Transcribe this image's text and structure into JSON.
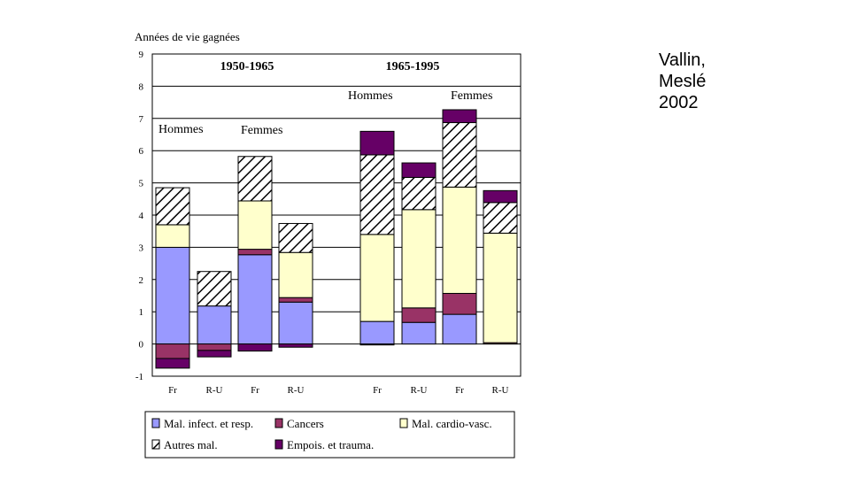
{
  "attribution": [
    "Vallin,",
    "Meslé",
    "2002"
  ],
  "chart_data": {
    "type": "bar",
    "stacked": true,
    "title": "",
    "xlabel": "",
    "ylabel": "Années de vie gagnées",
    "ylim": [
      -1,
      9
    ],
    "yticks": [
      -1,
      0,
      1,
      2,
      3,
      4,
      5,
      6,
      7,
      8,
      9
    ],
    "grid": true,
    "legend_position": "bottom",
    "categories": [
      "Fr",
      "R-U",
      "Fr",
      "R-U",
      "Fr",
      "R-U",
      "Fr",
      "R-U"
    ],
    "period_labels": [
      "1950-1965",
      "1965-1995"
    ],
    "group_labels": [
      "Hommes",
      "Femmes",
      "Hommes",
      "Femmes"
    ],
    "colors": {
      "infect": "#9999ff",
      "cancers": "#993366",
      "cardio": "#ffffcc",
      "autres": "#ffffff",
      "empois": "#660066"
    },
    "series": [
      {
        "name": "Mal. infect. et resp.",
        "key": "infect",
        "values": [
          3.0,
          1.18,
          2.77,
          1.3,
          0.7,
          0.67,
          0.92,
          0.0
        ]
      },
      {
        "name": "Cancers",
        "key": "cancers",
        "values": [
          -0.45,
          -0.2,
          0.17,
          0.14,
          -0.03,
          0.45,
          0.65,
          0.04
        ]
      },
      {
        "name": "Mal. cardio-vasc.",
        "key": "cardio",
        "values": [
          0.7,
          0.0,
          1.5,
          1.4,
          2.7,
          3.05,
          3.3,
          3.4
        ]
      },
      {
        "name": "Autres mal.",
        "key": "autres",
        "values": [
          1.15,
          1.07,
          1.38,
          0.9,
          2.47,
          1.0,
          2.0,
          0.95
        ]
      },
      {
        "name": "Empois. et trauma.",
        "key": "empois",
        "values": [
          -0.3,
          -0.2,
          -0.22,
          -0.1,
          0.73,
          0.45,
          0.4,
          0.37
        ]
      }
    ]
  }
}
